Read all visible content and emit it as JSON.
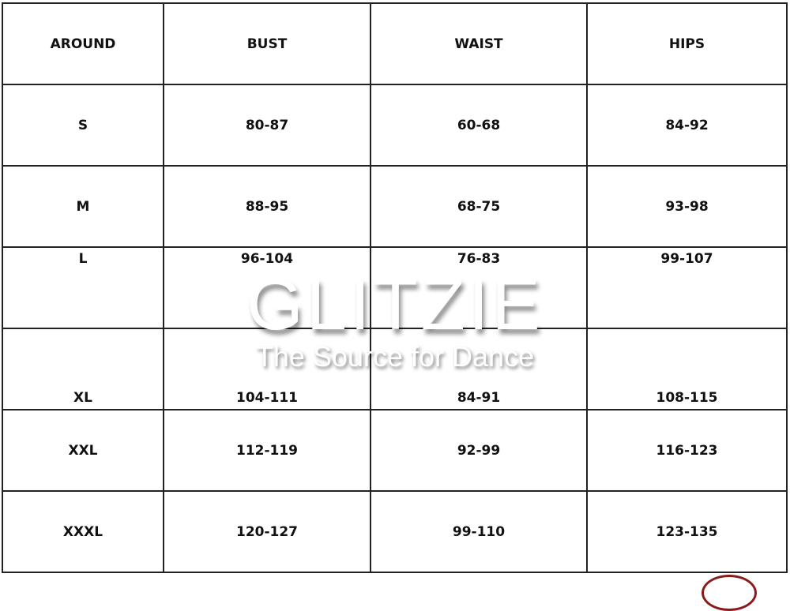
{
  "headers": [
    "AROUND",
    "BUST",
    "WAIST",
    "HIPS"
  ],
  "rows": [
    [
      "S",
      "80-87",
      "60-68",
      "84-92"
    ],
    [
      "M",
      "88-95",
      "68-75",
      "93-98"
    ],
    [
      "L",
      "96-104",
      "76-83",
      "99-107"
    ],
    [
      "XL",
      "104-111",
      "84-91",
      "108-115"
    ],
    [
      "XXL",
      "112-119",
      "92-99",
      "116-123"
    ],
    [
      "XXXL",
      "120-127",
      "99-110",
      "123-135"
    ]
  ],
  "watermark": {
    "brand": "GLITZIE",
    "tagline": "The Source for Dance"
  },
  "colors": {
    "border": "#222222",
    "mark": "#8b1a1a"
  }
}
